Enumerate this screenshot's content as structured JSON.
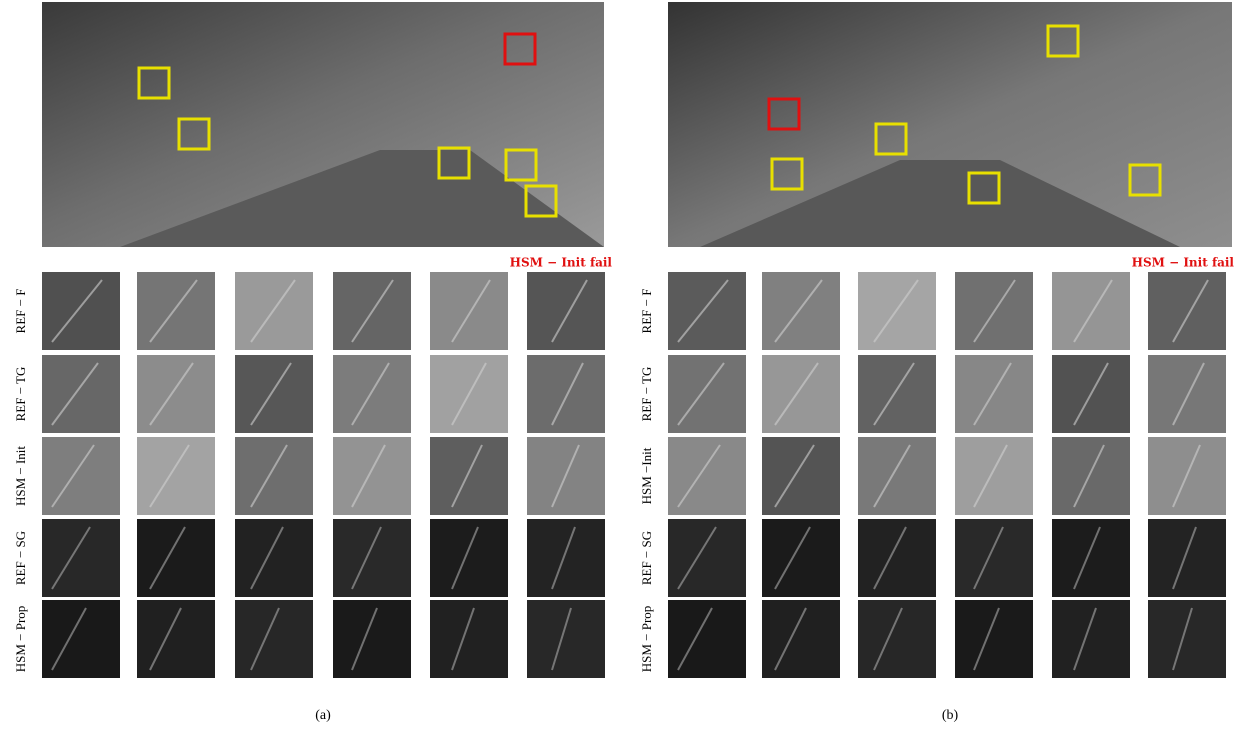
{
  "panels": [
    {
      "caption": "(a)",
      "fail_label": "HSM − Init fail",
      "row_labels": [
        "REF − F",
        "REF − TG",
        "HSM − Init",
        "REF − SG",
        "HSM − Prop"
      ]
    },
    {
      "caption": "(b)",
      "fail_label": "HSM − Init fail",
      "row_labels": [
        "REF − F",
        "REF − TG",
        "HSM −Init",
        "REF − SG",
        "HSM − Prop"
      ]
    }
  ]
}
